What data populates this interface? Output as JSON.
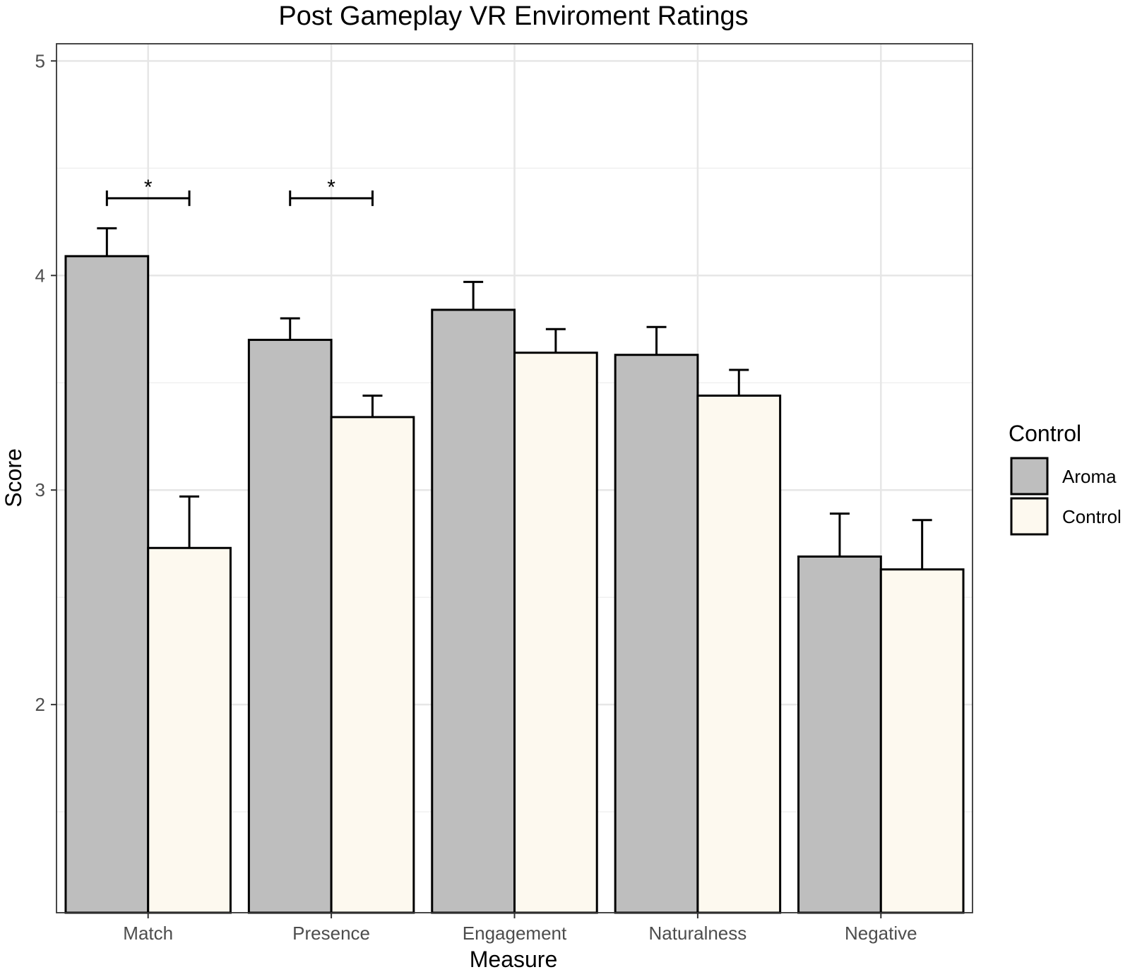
{
  "chart_data": {
    "type": "bar",
    "title": "Post Gameplay VR Enviroment Ratings",
    "xlabel": "Measure",
    "ylabel": "Score",
    "categories": [
      "Match",
      "Presence",
      "Engagement",
      "Naturalness",
      "Negative"
    ],
    "series": [
      {
        "name": "Aroma",
        "color": "#bebebe",
        "values": [
          4.09,
          3.7,
          3.84,
          3.63,
          2.69
        ],
        "error_upper": [
          4.22,
          3.8,
          3.97,
          3.76,
          2.89
        ]
      },
      {
        "name": "Control",
        "color": "#fdf9ef",
        "values": [
          2.73,
          3.34,
          3.64,
          3.44,
          2.63
        ],
        "error_upper": [
          2.97,
          3.44,
          3.75,
          3.56,
          2.86
        ]
      }
    ],
    "ylim": [
      1.03,
      5.08
    ],
    "yticks": [
      2,
      3,
      4,
      5
    ],
    "grid": true,
    "legend": {
      "title": "Control",
      "position": "right"
    },
    "significance": [
      {
        "category": "Match",
        "y": 4.36,
        "label": "*"
      },
      {
        "category": "Presence",
        "y": 4.36,
        "label": "*"
      }
    ]
  }
}
